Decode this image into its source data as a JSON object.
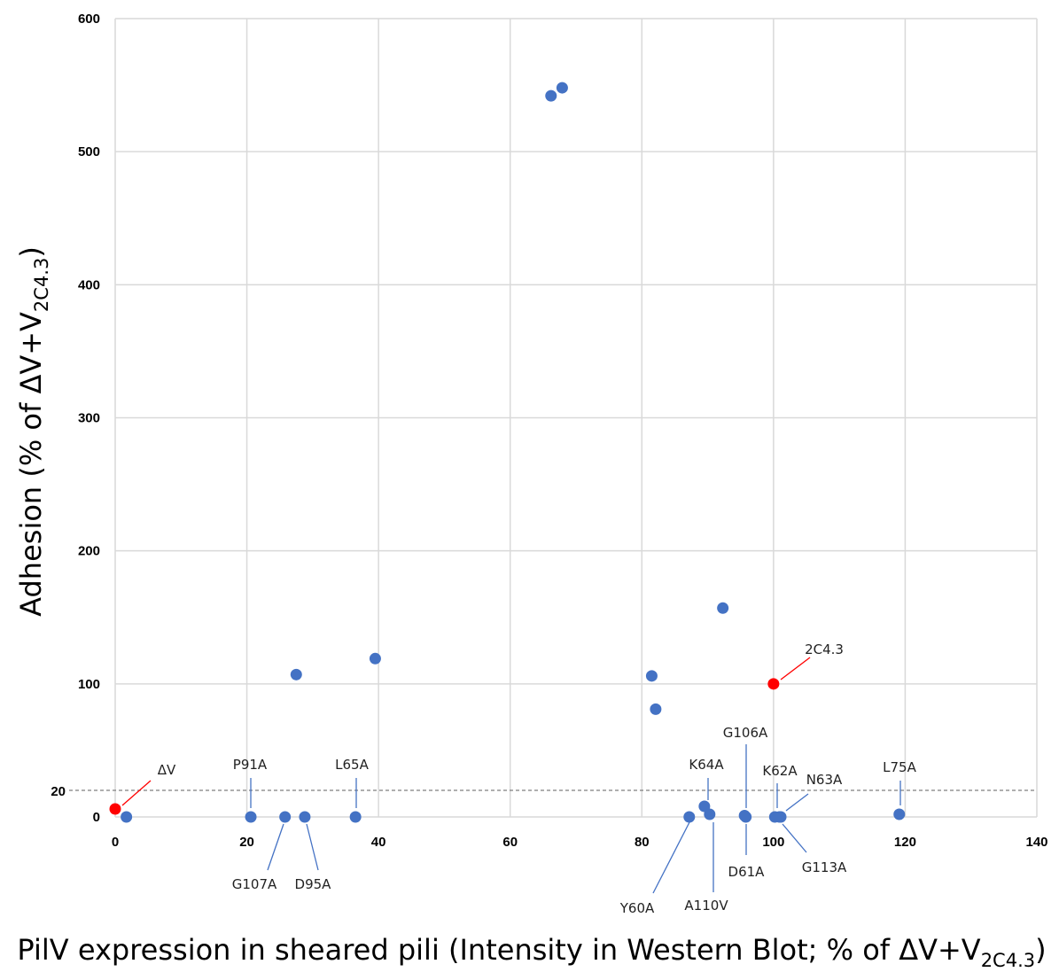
{
  "chart_data": {
    "type": "scatter",
    "title": "",
    "xlabel": {
      "main": "PilV expression in sheared pili (Intensity in Western Blot; % of ΔV+V",
      "sub": "2C4.3",
      "close": ")"
    },
    "ylabel": {
      "main": "Adhesion (% of ΔV+V",
      "sub": "2C4.3",
      "close": ")"
    },
    "xlim": [
      0,
      140
    ],
    "ylim": [
      0,
      600
    ],
    "x_ticks": [
      0,
      20,
      40,
      60,
      80,
      100,
      120,
      140
    ],
    "y_ticks": [
      0,
      100,
      200,
      300,
      400,
      500,
      600
    ],
    "extra_y_tick": 20,
    "reference_line_y": 20,
    "grid": true,
    "colors": {
      "mutant": "#4472C4",
      "control": "#FF0000",
      "grid": "#d9d9d9",
      "reference": "#7f7f7f"
    },
    "points": [
      {
        "x": 0,
        "y": 6,
        "label": "ΔV",
        "control": true
      },
      {
        "x": 100,
        "y": 100,
        "label": "2C4.3",
        "control": true
      },
      {
        "x": 1.7,
        "y": 0,
        "label": ""
      },
      {
        "x": 20.6,
        "y": 0,
        "label": "P91A"
      },
      {
        "x": 25.8,
        "y": 0,
        "label": "G107A"
      },
      {
        "x": 28.8,
        "y": 0,
        "label": "D95A"
      },
      {
        "x": 36.5,
        "y": 0,
        "label": "L65A"
      },
      {
        "x": 27.5,
        "y": 107,
        "label": ""
      },
      {
        "x": 39.5,
        "y": 119,
        "label": ""
      },
      {
        "x": 66.2,
        "y": 542,
        "label": ""
      },
      {
        "x": 67.9,
        "y": 548,
        "label": ""
      },
      {
        "x": 81.5,
        "y": 106,
        "label": ""
      },
      {
        "x": 82.1,
        "y": 81,
        "label": ""
      },
      {
        "x": 92.3,
        "y": 157,
        "label": ""
      },
      {
        "x": 87.2,
        "y": 0,
        "label": "Y60A"
      },
      {
        "x": 89.5,
        "y": 8,
        "label": "K64A"
      },
      {
        "x": 90.3,
        "y": 2,
        "label": "A110V"
      },
      {
        "x": 95.6,
        "y": 1,
        "label": "G106A"
      },
      {
        "x": 95.8,
        "y": 0,
        "label": "D61A"
      },
      {
        "x": 100.2,
        "y": 0,
        "label": "K62A"
      },
      {
        "x": 100.9,
        "y": 0,
        "label": "G113A"
      },
      {
        "x": 101.1,
        "y": 0,
        "label": "N63A"
      },
      {
        "x": 119.1,
        "y": 2,
        "label": "L75A"
      }
    ]
  }
}
